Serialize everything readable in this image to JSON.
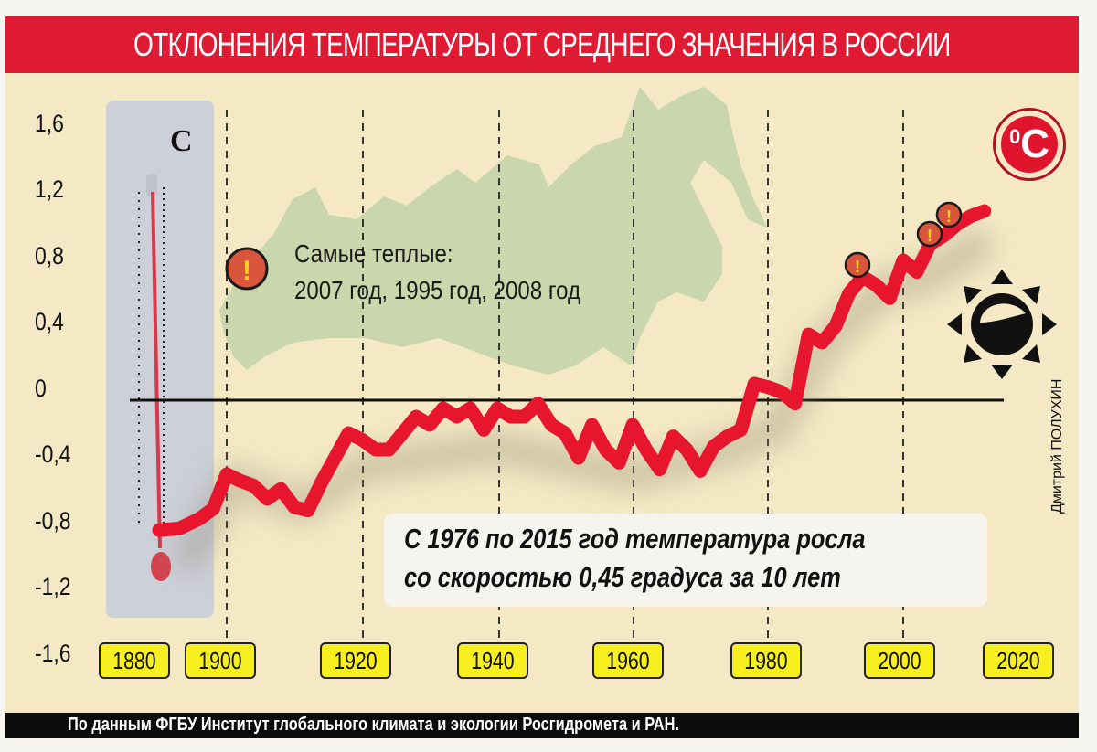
{
  "title": "ОТКЛОНЕНИЯ ТЕМПЕРАТУРЫ ОТ СРЕДНЕГО ЗНАЧЕНИЯ В РОССИИ",
  "unit_badge": {
    "degree": "0",
    "letter": "C"
  },
  "thermometer_label": "C",
  "note": {
    "heading": "Самые теплые:",
    "years": "2007 год, 1995 год, 2008 год"
  },
  "callout": {
    "line1": "С 1976 по 2015 год температура росла",
    "line2": "со скоростью 0,45 градуса за 10 лет"
  },
  "author": "Дмитрий ПОЛУХИН",
  "footer": "По данным ФГБУ Институт глобального климата и экологии Росгидромета и РАН.",
  "colors": {
    "title_bg": "#de1b33",
    "background": "#f4e9c4",
    "line": "#e8152e",
    "map": "#c5d4a8",
    "year_label_bg": "#f8ef21",
    "footer_bg": "#0c0c0c"
  },
  "y_ticks": [
    "1,6",
    "1,2",
    "0,8",
    "0,4",
    "0",
    "-0,4",
    "-0,8",
    "-1,2",
    "-1,6"
  ],
  "x_ticks": [
    "1880",
    "1900",
    "1920",
    "1940",
    "1960",
    "1980",
    "2000",
    "2020"
  ],
  "chart_data": {
    "type": "line",
    "title": "ОТКЛОНЕНИЯ ТЕМПЕРАТУРЫ ОТ СРЕДНЕГО ЗНАЧЕНИЯ В РОССИИ",
    "xlabel": "",
    "ylabel": "°C",
    "ylim": [
      -1.6,
      1.6
    ],
    "xlim": [
      1880,
      2020
    ],
    "grid": "vertical dashed lines at 1900, 1920, 1940, 1960, 1980, 2000; solid zero line",
    "legend": null,
    "annotations": [
      "Самые теплые: 2007 год, 1995 год, 2008 год",
      "С 1976 по 2015 год температура росла со скоростью 0,45 градуса за 10 лет"
    ],
    "highlighted_points": [
      {
        "year": 1995,
        "value": 0.78
      },
      {
        "year": 2007,
        "value": 1.0
      },
      {
        "year": 2008,
        "value": 1.07
      }
    ],
    "x": [
      1890,
      1893,
      1896,
      1898,
      1900,
      1902,
      1904,
      1906,
      1908,
      1910,
      1912,
      1914,
      1916,
      1918,
      1920,
      1922,
      1924,
      1926,
      1928,
      1930,
      1932,
      1934,
      1936,
      1938,
      1940,
      1942,
      1944,
      1946,
      1948,
      1950,
      1952,
      1954,
      1956,
      1958,
      1960,
      1962,
      1964,
      1966,
      1968,
      1970,
      1972,
      1974,
      1976,
      1978,
      1980,
      1982,
      1984,
      1986,
      1988,
      1990,
      1992,
      1994,
      1996,
      1998,
      2000,
      2002,
      2004,
      2006,
      2008,
      2010,
      2012
    ],
    "values": [
      -0.79,
      -0.78,
      -0.72,
      -0.66,
      -0.45,
      -0.49,
      -0.52,
      -0.6,
      -0.54,
      -0.65,
      -0.67,
      -0.5,
      -0.35,
      -0.2,
      -0.24,
      -0.3,
      -0.3,
      -0.2,
      -0.1,
      -0.15,
      -0.05,
      -0.1,
      -0.05,
      -0.18,
      -0.05,
      -0.1,
      -0.1,
      -0.02,
      -0.15,
      -0.2,
      -0.35,
      -0.15,
      -0.3,
      -0.38,
      -0.15,
      -0.3,
      -0.42,
      -0.22,
      -0.3,
      -0.43,
      -0.28,
      -0.22,
      -0.18,
      0.1,
      0.08,
      0.05,
      -0.02,
      0.4,
      0.35,
      0.45,
      0.65,
      0.75,
      0.7,
      0.62,
      0.85,
      0.78,
      0.95,
      1.0,
      1.07,
      1.12,
      1.15
    ]
  }
}
